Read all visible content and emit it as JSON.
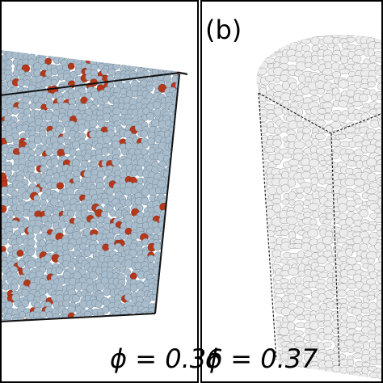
{
  "panels": [
    {
      "phi_label": "ϕ = 0.36"
    },
    {
      "label": "(b)",
      "phi_label": "ϕ = 0.37"
    }
  ]
}
